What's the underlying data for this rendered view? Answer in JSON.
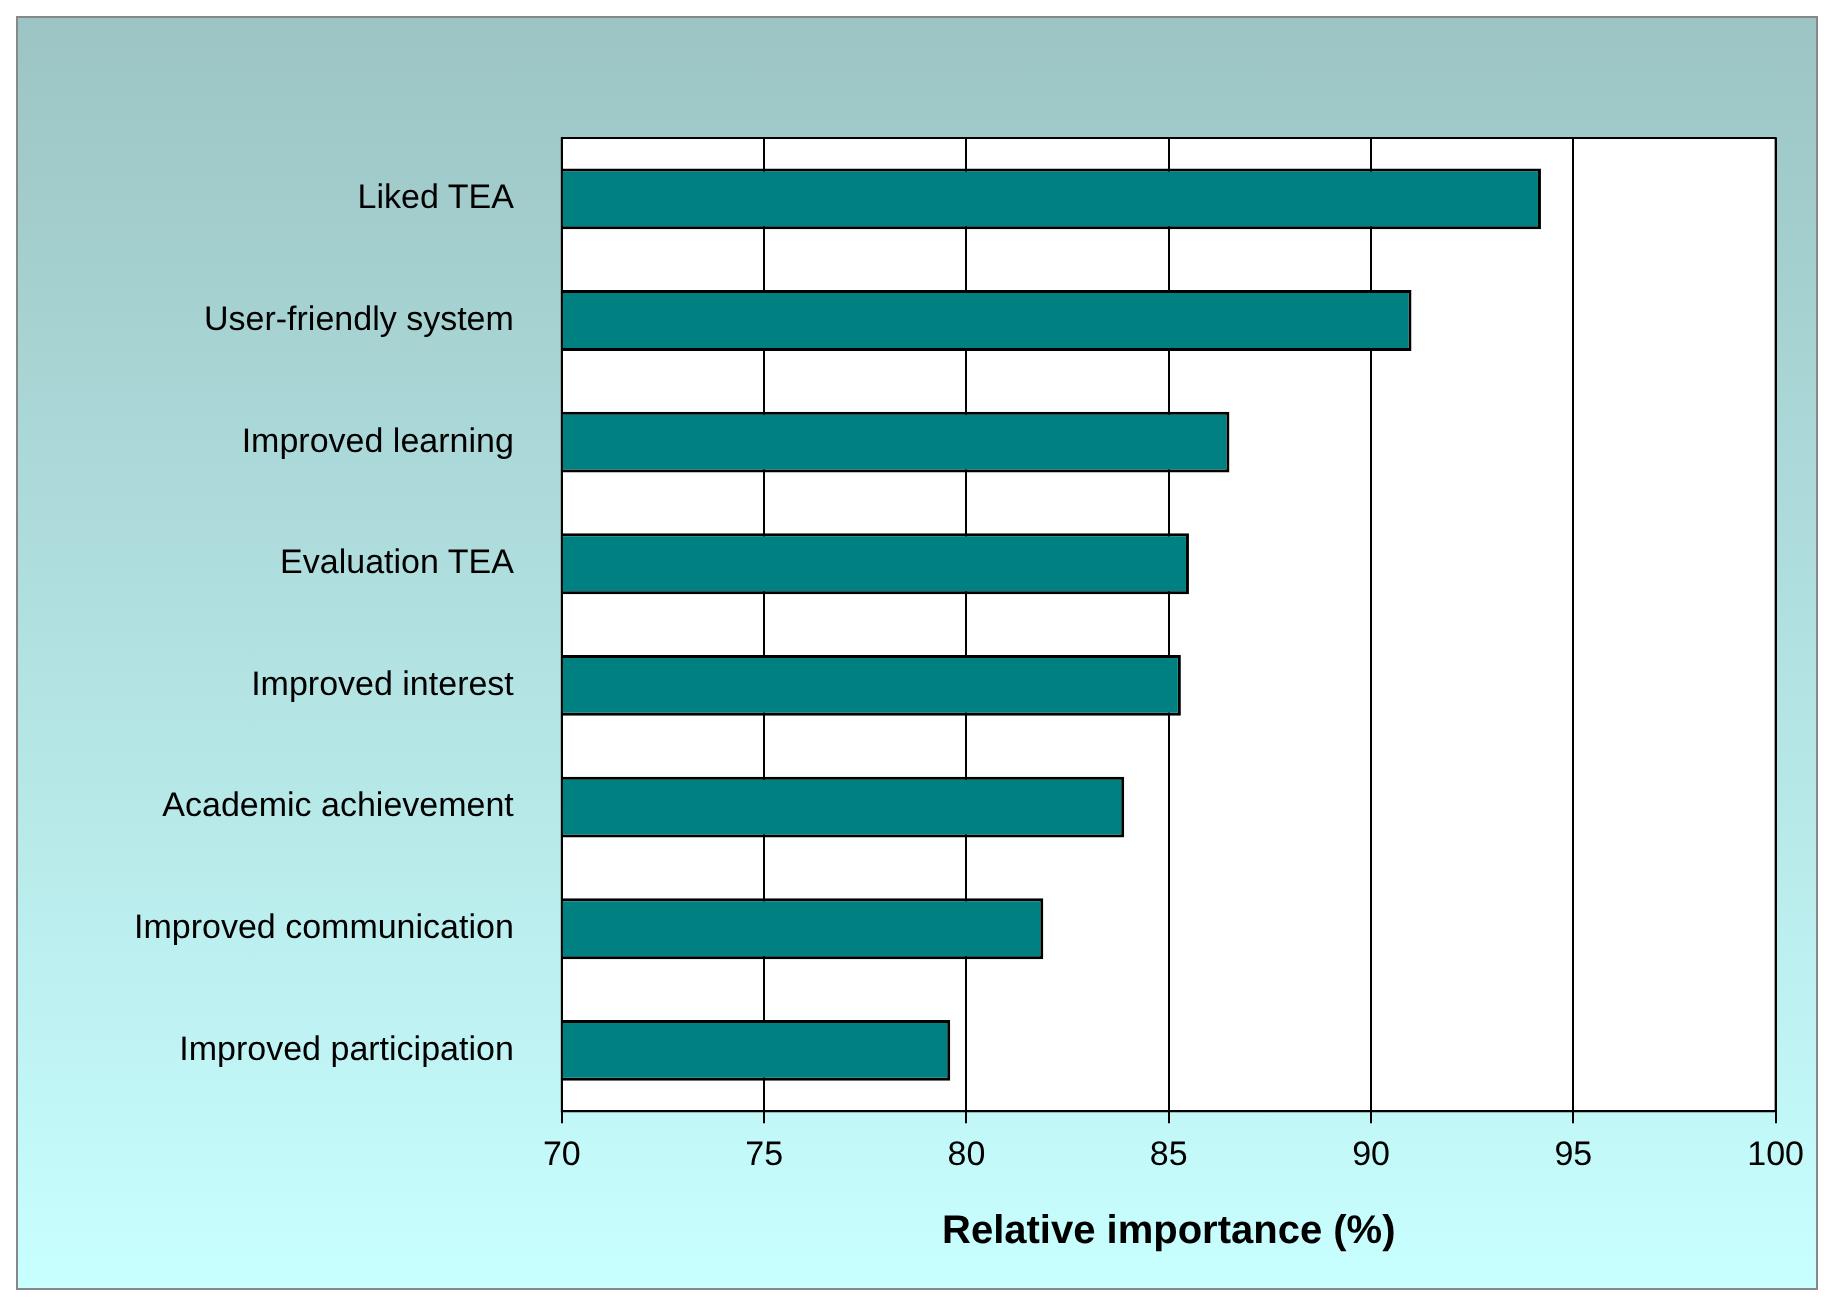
{
  "chart_data": {
    "type": "bar",
    "orientation": "horizontal",
    "xlabel": "Relative importance (%)",
    "categories": [
      "Liked TEA",
      "User-friendly system",
      "Improved learning",
      "Evaluation TEA",
      "Improved interest",
      "Academic achievement",
      "Improved communication",
      "Improved participation"
    ],
    "values": [
      94.2,
      91.0,
      86.5,
      85.5,
      85.3,
      83.9,
      81.9,
      79.6
    ],
    "color": "#008080",
    "xlim": [
      70,
      100
    ],
    "xticks": [
      70,
      75,
      80,
      85,
      90,
      95,
      100
    ],
    "grid": "x"
  }
}
